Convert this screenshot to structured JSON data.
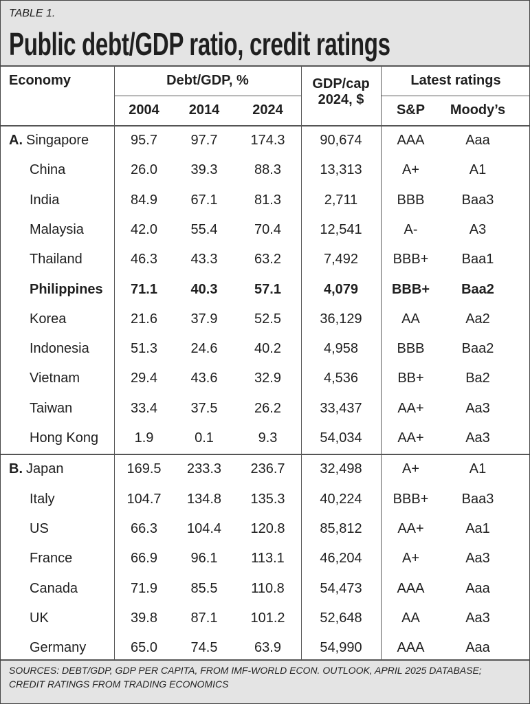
{
  "header": {
    "table_label": "TABLE 1.",
    "title": "Public debt/GDP ratio, credit ratings"
  },
  "columns": {
    "economy": "Economy",
    "debt_gdp": "Debt/GDP, %",
    "years": [
      "2004",
      "2014",
      "2024"
    ],
    "gdp_cap": [
      "GDP/cap",
      "2024, $"
    ],
    "ratings": "Latest ratings",
    "sp": "S&P",
    "moodys": "Moody’s"
  },
  "sections": [
    {
      "label": "A.",
      "rows": [
        {
          "cells": [
            "Singapore",
            "95.7",
            "97.7",
            "174.3",
            "90,674",
            "AAA",
            "Aaa"
          ]
        },
        {
          "cells": [
            "China",
            "26.0",
            "39.3",
            "88.3",
            "13,313",
            "A+",
            "A1"
          ]
        },
        {
          "cells": [
            "India",
            "84.9",
            "67.1",
            "81.3",
            "2,711",
            "BBB",
            "Baa3"
          ]
        },
        {
          "cells": [
            "Malaysia",
            "42.0",
            "55.4",
            "70.4",
            "12,541",
            "A-",
            "A3"
          ]
        },
        {
          "cells": [
            "Thailand",
            "46.3",
            "43.3",
            "63.2",
            "7,492",
            "BBB+",
            "Baa1"
          ]
        },
        {
          "cells": [
            "Philippines",
            "71.1",
            "40.3",
            "57.1",
            "4,079",
            "BBB+",
            "Baa2"
          ],
          "bold": true
        },
        {
          "cells": [
            "Korea",
            "21.6",
            "37.9",
            "52.5",
            "36,129",
            "AA",
            "Aa2"
          ]
        },
        {
          "cells": [
            "Indonesia",
            "51.3",
            "24.6",
            "40.2",
            "4,958",
            "BBB",
            "Baa2"
          ]
        },
        {
          "cells": [
            "Vietnam",
            "29.4",
            "43.6",
            "32.9",
            "4,536",
            "BB+",
            "Ba2"
          ]
        },
        {
          "cells": [
            "Taiwan",
            "33.4",
            "37.5",
            "26.2",
            "33,437",
            "AA+",
            "Aa3"
          ]
        },
        {
          "cells": [
            "Hong Kong",
            "1.9",
            "0.1",
            "9.3",
            "54,034",
            "AA+",
            "Aa3"
          ]
        }
      ]
    },
    {
      "label": "B.",
      "rows": [
        {
          "cells": [
            "Japan",
            "169.5",
            "233.3",
            "236.7",
            "32,498",
            "A+",
            "A1"
          ]
        },
        {
          "cells": [
            "Italy",
            "104.7",
            "134.8",
            "135.3",
            "40,224",
            "BBB+",
            "Baa3"
          ]
        },
        {
          "cells": [
            "US",
            "66.3",
            "104.4",
            "120.8",
            "85,812",
            "AA+",
            "Aa1"
          ]
        },
        {
          "cells": [
            "France",
            "66.9",
            "96.1",
            "113.1",
            "46,204",
            "A+",
            "Aa3"
          ]
        },
        {
          "cells": [
            "Canada",
            "71.9",
            "85.5",
            "110.8",
            "54,473",
            "AAA",
            "Aaa"
          ]
        },
        {
          "cells": [
            "UK",
            "39.8",
            "87.1",
            "101.2",
            "52,648",
            "AA",
            "Aa3"
          ]
        },
        {
          "cells": [
            "Germany",
            "65.0",
            "74.5",
            "63.9",
            "54,990",
            "AAA",
            "Aaa"
          ]
        }
      ]
    }
  ],
  "footer": {
    "source": [
      "SOURCES: DEBT/GDP, GDP PER CAPITA, FROM IMF-WORLD ECON. OUTLOOK, APRIL 2025 DATABASE;",
      "CREDIT RATINGS FROM TRADING ECONOMICS"
    ]
  }
}
